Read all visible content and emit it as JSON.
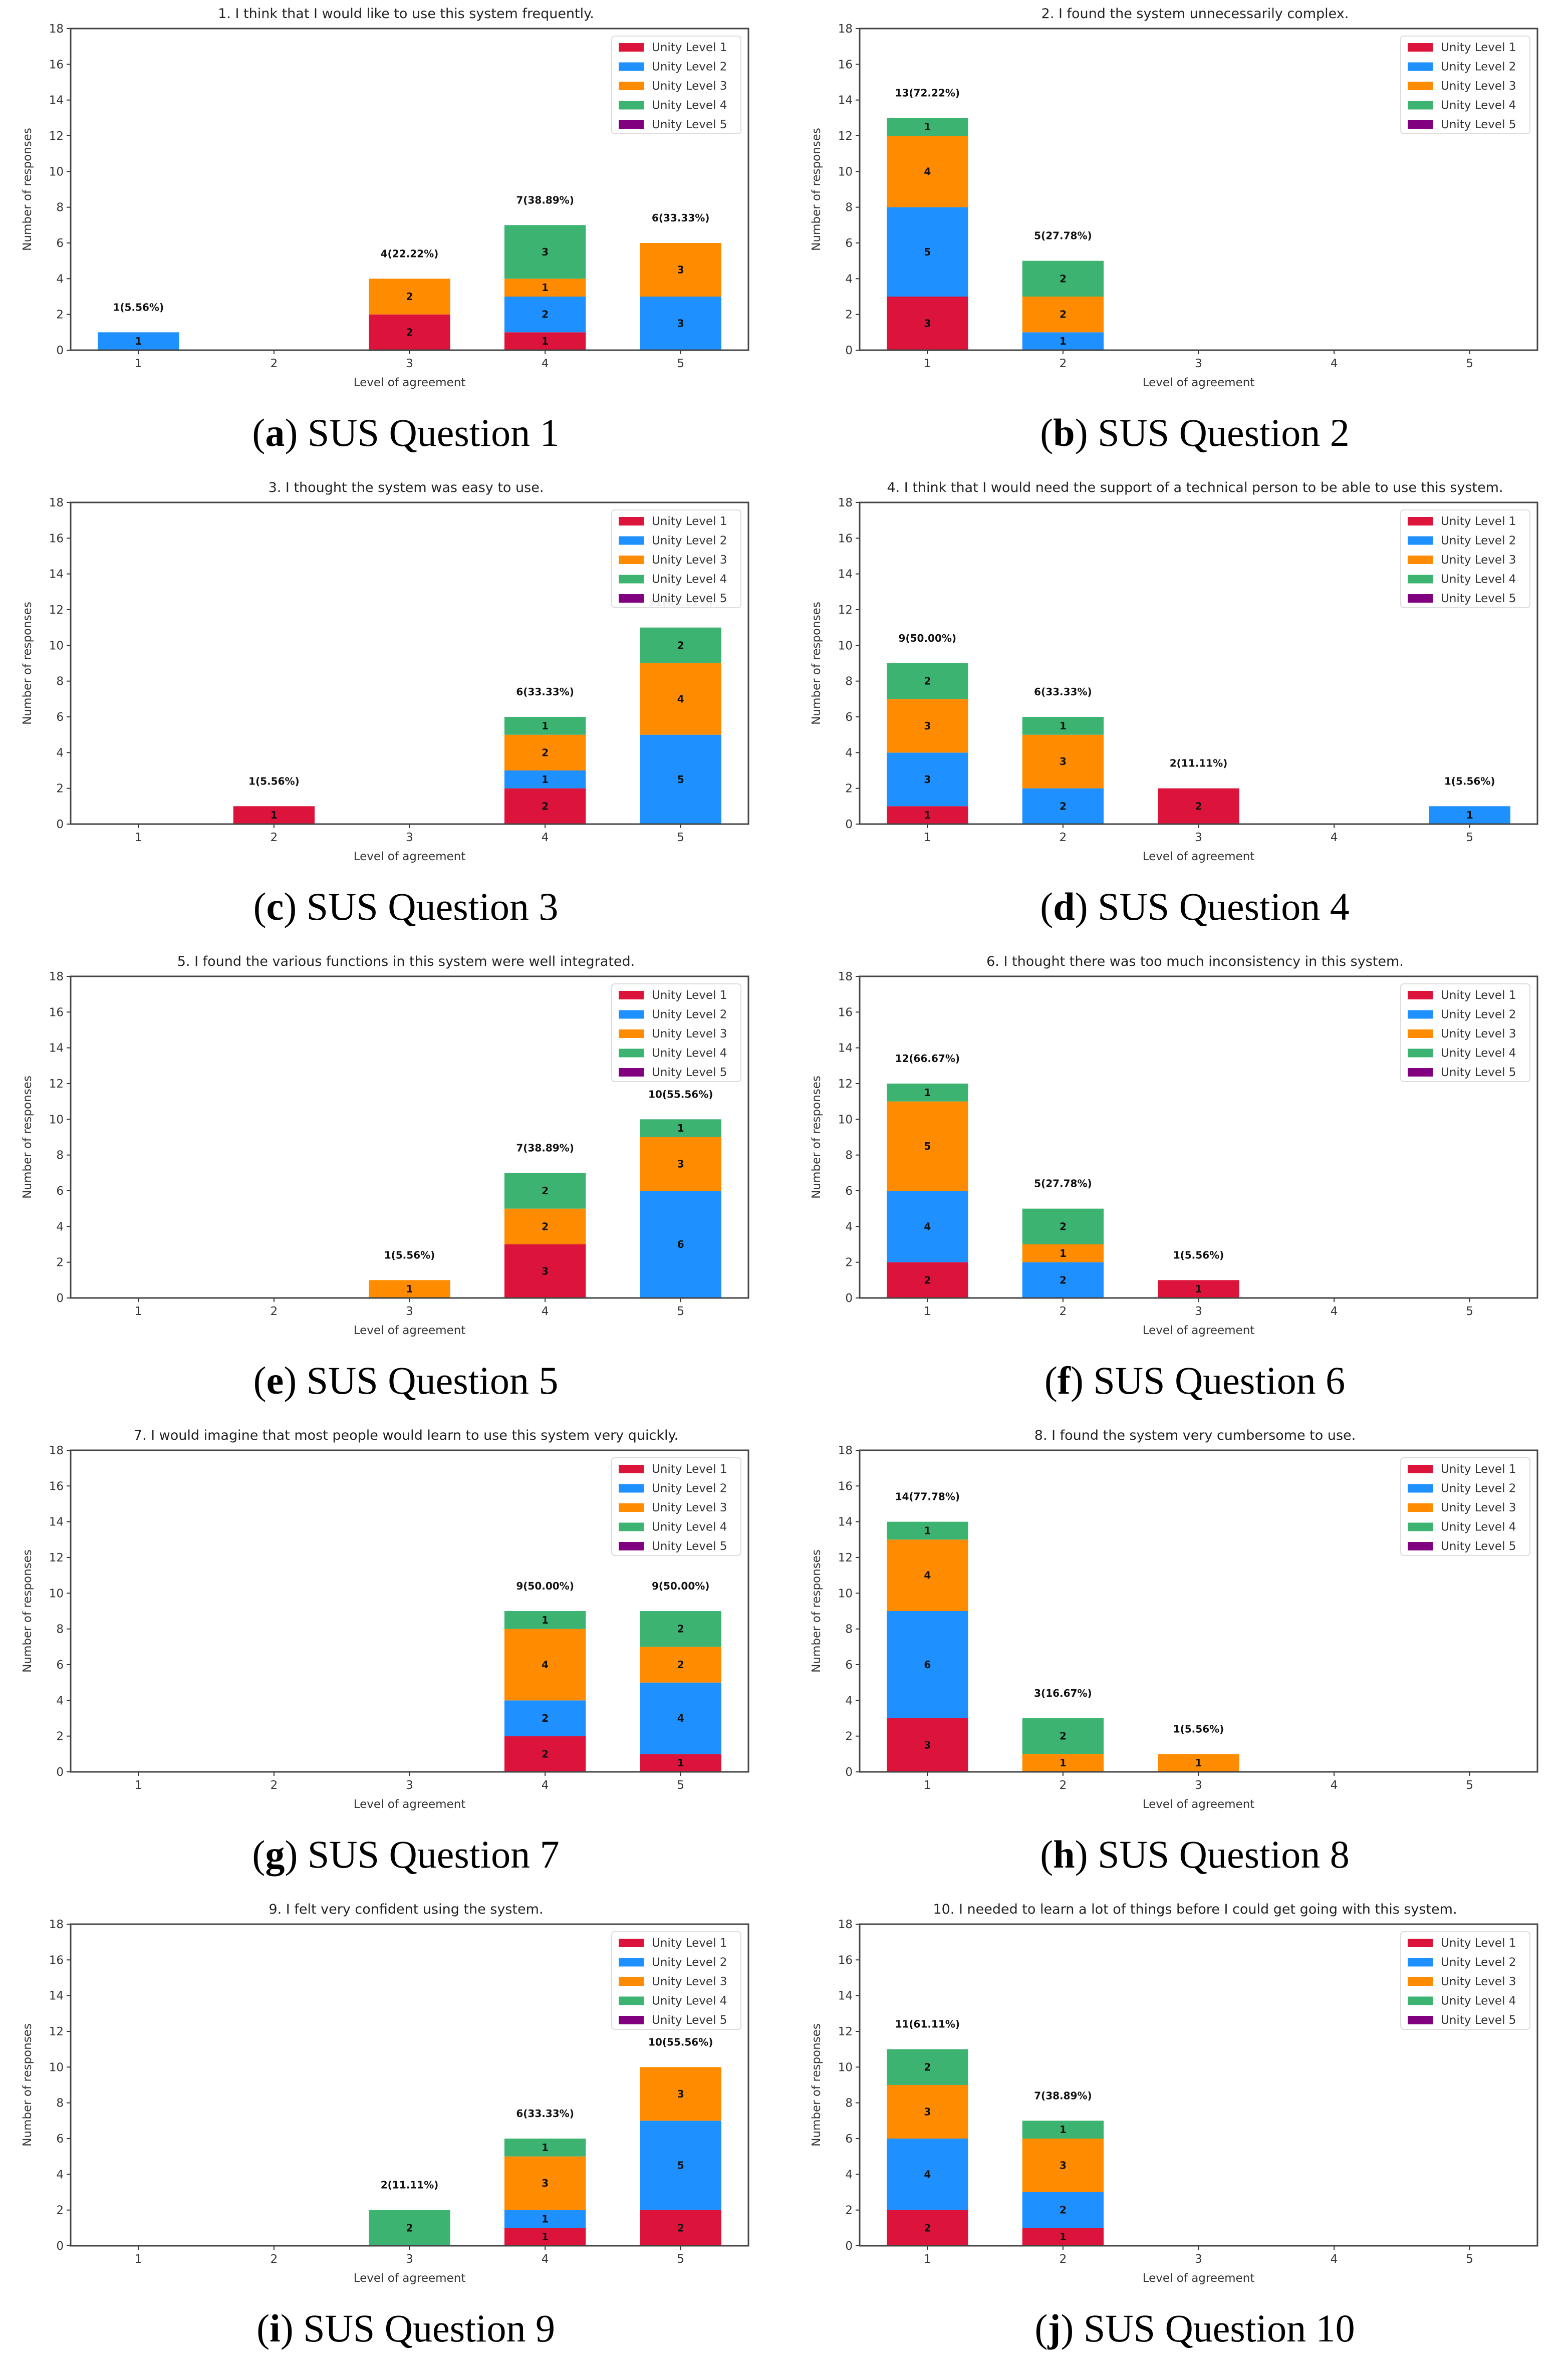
{
  "colors": {
    "Unity Level 1": "#DC143C",
    "Unity Level 2": "#1E90FF",
    "Unity Level 3": "#FF8C00",
    "Unity Level 4": "#3CB371",
    "Unity Level 5": "#800080"
  },
  "chart_data": [
    {
      "type": "bar",
      "stacked": true,
      "title": "1. I think that I would like to use this system frequently.",
      "xlabel": "Level of agreement",
      "ylabel": "Number of responses",
      "ylim": [
        0,
        18
      ],
      "yticks": [
        0,
        2,
        4,
        6,
        8,
        10,
        12,
        14,
        16,
        18
      ],
      "categories": [
        "1",
        "2",
        "3",
        "4",
        "5"
      ],
      "legend": "top-right",
      "series": [
        {
          "name": "Unity Level 1",
          "values": [
            0,
            0,
            2,
            1,
            0
          ]
        },
        {
          "name": "Unity Level 2",
          "values": [
            1,
            0,
            0,
            2,
            3
          ]
        },
        {
          "name": "Unity Level 3",
          "values": [
            0,
            0,
            2,
            1,
            3
          ]
        },
        {
          "name": "Unity Level 4",
          "values": [
            0,
            0,
            0,
            3,
            0
          ]
        },
        {
          "name": "Unity Level 5",
          "values": [
            0,
            0,
            0,
            0,
            0
          ]
        }
      ],
      "total_labels": [
        "1(5.56%)",
        null,
        "4(22.22%)",
        "7(38.89%)",
        "6(33.33%)"
      ],
      "caption_letter": "a",
      "caption_text": "SUS Question 1"
    },
    {
      "type": "bar",
      "stacked": true,
      "title": "2. I found the system unnecessarily complex.",
      "xlabel": "Level of agreement",
      "ylabel": "Number of responses",
      "ylim": [
        0,
        18
      ],
      "yticks": [
        0,
        2,
        4,
        6,
        8,
        10,
        12,
        14,
        16,
        18
      ],
      "categories": [
        "1",
        "2",
        "3",
        "4",
        "5"
      ],
      "legend": "top-right",
      "series": [
        {
          "name": "Unity Level 1",
          "values": [
            3,
            0,
            0,
            0,
            0
          ]
        },
        {
          "name": "Unity Level 2",
          "values": [
            5,
            1,
            0,
            0,
            0
          ]
        },
        {
          "name": "Unity Level 3",
          "values": [
            4,
            2,
            0,
            0,
            0
          ]
        },
        {
          "name": "Unity Level 4",
          "values": [
            1,
            2,
            0,
            0,
            0
          ]
        },
        {
          "name": "Unity Level 5",
          "values": [
            0,
            0,
            0,
            0,
            0
          ]
        }
      ],
      "total_labels": [
        "13(72.22%)",
        "5(27.78%)",
        null,
        null,
        null
      ],
      "caption_letter": "b",
      "caption_text": "SUS Question 2"
    },
    {
      "type": "bar",
      "stacked": true,
      "title": "3. I thought the system was easy to use.",
      "xlabel": "Level of agreement",
      "ylabel": "Number of responses",
      "ylim": [
        0,
        18
      ],
      "yticks": [
        0,
        2,
        4,
        6,
        8,
        10,
        12,
        14,
        16,
        18
      ],
      "categories": [
        "1",
        "2",
        "3",
        "4",
        "5"
      ],
      "legend": "top-right",
      "series": [
        {
          "name": "Unity Level 1",
          "values": [
            0,
            1,
            0,
            2,
            0
          ]
        },
        {
          "name": "Unity Level 2",
          "values": [
            0,
            0,
            0,
            1,
            5
          ]
        },
        {
          "name": "Unity Level 3",
          "values": [
            0,
            0,
            0,
            2,
            4
          ]
        },
        {
          "name": "Unity Level 4",
          "values": [
            0,
            0,
            0,
            1,
            2
          ]
        },
        {
          "name": "Unity Level 5",
          "values": [
            0,
            0,
            0,
            0,
            0
          ]
        }
      ],
      "total_labels": [
        null,
        "1(5.56%)",
        null,
        "6(33.33%)",
        "11(61.11%)"
      ],
      "caption_letter": "c",
      "caption_text": "SUS Question 3"
    },
    {
      "type": "bar",
      "stacked": true,
      "title": "4. I think that I would need the support of a technical person to be able to use this system.",
      "xlabel": "Level of agreement",
      "ylabel": "Number of responses",
      "ylim": [
        0,
        18
      ],
      "yticks": [
        0,
        2,
        4,
        6,
        8,
        10,
        12,
        14,
        16,
        18
      ],
      "categories": [
        "1",
        "2",
        "3",
        "4",
        "5"
      ],
      "legend": "top-right",
      "series": [
        {
          "name": "Unity Level 1",
          "values": [
            1,
            0,
            2,
            0,
            0
          ]
        },
        {
          "name": "Unity Level 2",
          "values": [
            3,
            2,
            0,
            0,
            1
          ]
        },
        {
          "name": "Unity Level 3",
          "values": [
            3,
            3,
            0,
            0,
            0
          ]
        },
        {
          "name": "Unity Level 4",
          "values": [
            2,
            1,
            0,
            0,
            0
          ]
        },
        {
          "name": "Unity Level 5",
          "values": [
            0,
            0,
            0,
            0,
            0
          ]
        }
      ],
      "total_labels": [
        "9(50.00%)",
        "6(33.33%)",
        "2(11.11%)",
        null,
        "1(5.56%)"
      ],
      "caption_letter": "d",
      "caption_text": "SUS Question 4"
    },
    {
      "type": "bar",
      "stacked": true,
      "title": "5. I found the various functions in this system were well integrated.",
      "xlabel": "Level of agreement",
      "ylabel": "Number of responses",
      "ylim": [
        0,
        18
      ],
      "yticks": [
        0,
        2,
        4,
        6,
        8,
        10,
        12,
        14,
        16,
        18
      ],
      "categories": [
        "1",
        "2",
        "3",
        "4",
        "5"
      ],
      "legend": "top-right",
      "series": [
        {
          "name": "Unity Level 1",
          "values": [
            0,
            0,
            0,
            3,
            0
          ]
        },
        {
          "name": "Unity Level 2",
          "values": [
            0,
            0,
            0,
            0,
            6
          ]
        },
        {
          "name": "Unity Level 3",
          "values": [
            0,
            0,
            1,
            2,
            3
          ]
        },
        {
          "name": "Unity Level 4",
          "values": [
            0,
            0,
            0,
            2,
            1
          ]
        },
        {
          "name": "Unity Level 5",
          "values": [
            0,
            0,
            0,
            0,
            0
          ]
        }
      ],
      "total_labels": [
        null,
        null,
        "1(5.56%)",
        "7(38.89%)",
        "10(55.56%)"
      ],
      "caption_letter": "e",
      "caption_text": "SUS Question 5"
    },
    {
      "type": "bar",
      "stacked": true,
      "title": "6. I thought there was too much inconsistency in this system.",
      "xlabel": "Level of agreement",
      "ylabel": "Number of responses",
      "ylim": [
        0,
        18
      ],
      "yticks": [
        0,
        2,
        4,
        6,
        8,
        10,
        12,
        14,
        16,
        18
      ],
      "categories": [
        "1",
        "2",
        "3",
        "4",
        "5"
      ],
      "legend": "top-right",
      "series": [
        {
          "name": "Unity Level 1",
          "values": [
            2,
            0,
            1,
            0,
            0
          ]
        },
        {
          "name": "Unity Level 2",
          "values": [
            4,
            2,
            0,
            0,
            0
          ]
        },
        {
          "name": "Unity Level 3",
          "values": [
            5,
            1,
            0,
            0,
            0
          ]
        },
        {
          "name": "Unity Level 4",
          "values": [
            1,
            2,
            0,
            0,
            0
          ]
        },
        {
          "name": "Unity Level 5",
          "values": [
            0,
            0,
            0,
            0,
            0
          ]
        }
      ],
      "total_labels": [
        "12(66.67%)",
        "5(27.78%)",
        "1(5.56%)",
        null,
        null
      ],
      "caption_letter": "f",
      "caption_text": "SUS Question 6"
    },
    {
      "type": "bar",
      "stacked": true,
      "title": "7. I would imagine that most people would learn to use this system very quickly.",
      "xlabel": "Level of agreement",
      "ylabel": "Number of responses",
      "ylim": [
        0,
        18
      ],
      "yticks": [
        0,
        2,
        4,
        6,
        8,
        10,
        12,
        14,
        16,
        18
      ],
      "categories": [
        "1",
        "2",
        "3",
        "4",
        "5"
      ],
      "legend": "top-right",
      "series": [
        {
          "name": "Unity Level 1",
          "values": [
            0,
            0,
            0,
            2,
            1
          ]
        },
        {
          "name": "Unity Level 2",
          "values": [
            0,
            0,
            0,
            2,
            4
          ]
        },
        {
          "name": "Unity Level 3",
          "values": [
            0,
            0,
            0,
            4,
            2
          ]
        },
        {
          "name": "Unity Level 4",
          "values": [
            0,
            0,
            0,
            1,
            2
          ]
        },
        {
          "name": "Unity Level 5",
          "values": [
            0,
            0,
            0,
            0,
            0
          ]
        }
      ],
      "total_labels": [
        null,
        null,
        null,
        "9(50.00%)",
        "9(50.00%)"
      ],
      "caption_letter": "g",
      "caption_text": "SUS Question 7"
    },
    {
      "type": "bar",
      "stacked": true,
      "title": "8. I found the system very cumbersome to use.",
      "xlabel": "Level of agreement",
      "ylabel": "Number of responses",
      "ylim": [
        0,
        18
      ],
      "yticks": [
        0,
        2,
        4,
        6,
        8,
        10,
        12,
        14,
        16,
        18
      ],
      "categories": [
        "1",
        "2",
        "3",
        "4",
        "5"
      ],
      "legend": "top-right",
      "series": [
        {
          "name": "Unity Level 1",
          "values": [
            3,
            0,
            0,
            0,
            0
          ]
        },
        {
          "name": "Unity Level 2",
          "values": [
            6,
            0,
            0,
            0,
            0
          ]
        },
        {
          "name": "Unity Level 3",
          "values": [
            4,
            1,
            1,
            0,
            0
          ]
        },
        {
          "name": "Unity Level 4",
          "values": [
            1,
            2,
            0,
            0,
            0
          ]
        },
        {
          "name": "Unity Level 5",
          "values": [
            0,
            0,
            0,
            0,
            0
          ]
        }
      ],
      "total_labels": [
        "14(77.78%)",
        "3(16.67%)",
        "1(5.56%)",
        null,
        null
      ],
      "caption_letter": "h",
      "caption_text": "SUS Question 8"
    },
    {
      "type": "bar",
      "stacked": true,
      "title": "9. I felt very confident using the system.",
      "xlabel": "Level of agreement",
      "ylabel": "Number of responses",
      "ylim": [
        0,
        18
      ],
      "yticks": [
        0,
        2,
        4,
        6,
        8,
        10,
        12,
        14,
        16,
        18
      ],
      "categories": [
        "1",
        "2",
        "3",
        "4",
        "5"
      ],
      "legend": "top-right",
      "series": [
        {
          "name": "Unity Level 1",
          "values": [
            0,
            0,
            0,
            1,
            2
          ]
        },
        {
          "name": "Unity Level 2",
          "values": [
            0,
            0,
            0,
            1,
            5
          ]
        },
        {
          "name": "Unity Level 3",
          "values": [
            0,
            0,
            0,
            3,
            3
          ]
        },
        {
          "name": "Unity Level 4",
          "values": [
            0,
            0,
            2,
            1,
            0
          ]
        },
        {
          "name": "Unity Level 5",
          "values": [
            0,
            0,
            0,
            0,
            0
          ]
        }
      ],
      "total_labels": [
        null,
        null,
        "2(11.11%)",
        "6(33.33%)",
        "10(55.56%)"
      ],
      "caption_letter": "i",
      "caption_text": "SUS Question 9"
    },
    {
      "type": "bar",
      "stacked": true,
      "title": "10. I needed to learn a lot of things before I could get going with this system.",
      "xlabel": "Level of agreement",
      "ylabel": "Number of responses",
      "ylim": [
        0,
        18
      ],
      "yticks": [
        0,
        2,
        4,
        6,
        8,
        10,
        12,
        14,
        16,
        18
      ],
      "categories": [
        "1",
        "2",
        "3",
        "4",
        "5"
      ],
      "legend": "top-right",
      "series": [
        {
          "name": "Unity Level 1",
          "values": [
            2,
            1,
            0,
            0,
            0
          ]
        },
        {
          "name": "Unity Level 2",
          "values": [
            4,
            2,
            0,
            0,
            0
          ]
        },
        {
          "name": "Unity Level 3",
          "values": [
            3,
            3,
            0,
            0,
            0
          ]
        },
        {
          "name": "Unity Level 4",
          "values": [
            2,
            1,
            0,
            0,
            0
          ]
        },
        {
          "name": "Unity Level 5",
          "values": [
            0,
            0,
            0,
            0,
            0
          ]
        }
      ],
      "total_labels": [
        "11(61.11%)",
        "7(38.89%)",
        null,
        null,
        null
      ],
      "caption_letter": "j",
      "caption_text": "SUS Question 10"
    }
  ]
}
